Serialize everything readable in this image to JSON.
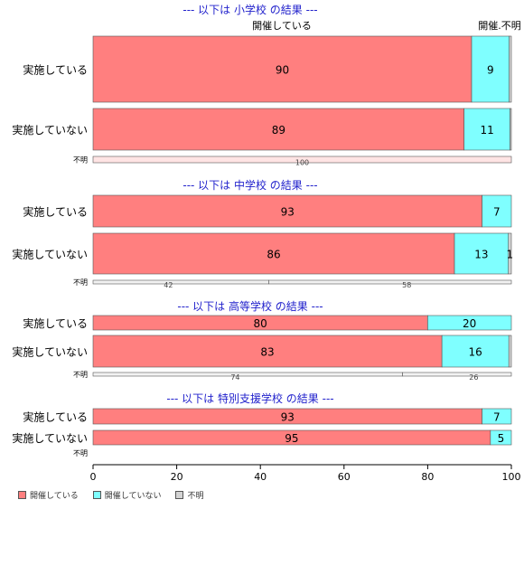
{
  "chart_data": {
    "type": "bar",
    "orientation": "horizontal",
    "stacked": true,
    "xlim": [
      0,
      100
    ],
    "xticks": [
      0,
      20,
      40,
      60,
      80,
      100
    ],
    "colors": {
      "held": "#ff7f7f",
      "not_held": "#7fffff",
      "unknown": "#d3d3d3"
    },
    "legend": [
      "開催している",
      "開催していない",
      "不明"
    ],
    "top_labels": [
      "開催している",
      "開催.不明"
    ],
    "groups": [
      {
        "title": "--- 以下は 小学校 の結果 ---",
        "rows": [
          {
            "label": "実施している",
            "values": [
              90.5,
              9.0,
              0.5
            ],
            "labels": [
              "90",
              "9",
              ""
            ]
          },
          {
            "label": "実施していない",
            "values": [
              88.7,
              11.0,
              0.3
            ],
            "labels": [
              "89",
              "11",
              ""
            ]
          },
          {
            "label": "不明",
            "values": [
              100,
              0,
              0
            ],
            "labels": [
              "100",
              "",
              ""
            ]
          }
        ]
      },
      {
        "title": "--- 以下は 中学校 の結果 ---",
        "rows": [
          {
            "label": "実施している",
            "values": [
              93.0,
              7.0,
              0
            ],
            "labels": [
              "93",
              "7",
              ""
            ]
          },
          {
            "label": "実施していない",
            "values": [
              86.4,
              12.9,
              0.7
            ],
            "labels": [
              "86",
              "13",
              "1"
            ]
          },
          {
            "label": "不明",
            "values": [
              42,
              58,
              0
            ],
            "labels": [
              "42",
              "58",
              ""
            ]
          }
        ]
      },
      {
        "title": "--- 以下は 高等学校 の結果 ---",
        "rows": [
          {
            "label": "実施している",
            "values": [
              80,
              20,
              0
            ],
            "labels": [
              "80",
              "20",
              ""
            ]
          },
          {
            "label": "実施していない",
            "values": [
              83.4,
              16.0,
              0.6
            ],
            "labels": [
              "83",
              "16",
              ""
            ]
          },
          {
            "label": "不明",
            "values": [
              74,
              26,
              0
            ],
            "labels": [
              "74",
              "26",
              ""
            ]
          }
        ]
      },
      {
        "title": "--- 以下は 特別支援学校 の結果 ---",
        "rows": [
          {
            "label": "実施している",
            "values": [
              93,
              7,
              0
            ],
            "labels": [
              "93",
              "7",
              ""
            ]
          },
          {
            "label": "実施していない",
            "values": [
              95,
              5,
              0
            ],
            "labels": [
              "95",
              "5",
              ""
            ]
          },
          {
            "label": "不明",
            "values": [
              0,
              0,
              0
            ],
            "labels": [
              "",
              "",
              ""
            ]
          }
        ]
      }
    ]
  }
}
